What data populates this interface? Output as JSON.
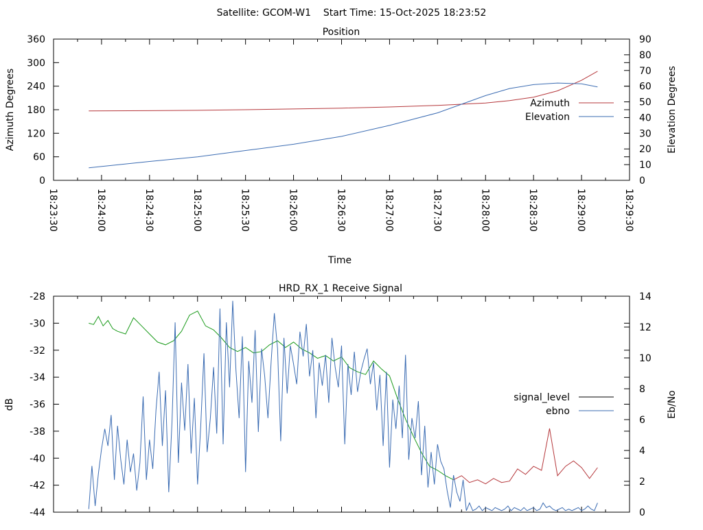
{
  "header": {
    "title": "Satellite: GCOM-W1    Start Time: 15-Oct-2025 18:23:52"
  },
  "chart_data": [
    {
      "type": "line",
      "title": "Position",
      "xlabel": "Time",
      "ylabel": "Azimuth Degrees",
      "y2label": "Elevation Degrees",
      "xlim": [
        0,
        360
      ],
      "ylim": [
        0,
        360
      ],
      "y2lim": [
        0,
        90
      ],
      "x_ticks": [
        0,
        30,
        60,
        90,
        120,
        150,
        180,
        210,
        240,
        270,
        300,
        330,
        360
      ],
      "x_tick_labels": [
        "18:23:30",
        "18:24:00",
        "18:24:30",
        "18:25:00",
        "18:25:30",
        "18:26:00",
        "18:26:30",
        "18:27:00",
        "18:27:30",
        "18:28:00",
        "18:28:30",
        "18:29:00",
        "18:29:30"
      ],
      "y_ticks": [
        "0",
        "60",
        "120",
        "180",
        "240",
        "300",
        "360"
      ],
      "y2_ticks": [
        "0",
        "10",
        "20",
        "30",
        "40",
        "50",
        "60",
        "70",
        "80",
        "90"
      ],
      "legend_position": "right",
      "series": [
        {
          "name": "Azimuth",
          "axis": "y",
          "color": "#b5363a",
          "x": [
            22,
            60,
            90,
            120,
            150,
            180,
            210,
            240,
            270,
            285,
            300,
            315,
            330,
            340
          ],
          "values": [
            177,
            177.5,
            178.5,
            180,
            182,
            184,
            187,
            191,
            197,
            203,
            212,
            228,
            255,
            278
          ]
        },
        {
          "name": "Elevation",
          "axis": "y2",
          "color": "#3a6bb2",
          "x": [
            22,
            60,
            90,
            120,
            150,
            180,
            210,
            240,
            270,
            285,
            300,
            315,
            330,
            340
          ],
          "values": [
            8,
            12,
            15,
            19,
            23,
            28,
            35,
            43,
            54,
            58.5,
            61,
            62,
            61.5,
            59.5
          ]
        }
      ]
    },
    {
      "type": "line",
      "title": "HRD_RX_1 Receive Signal",
      "xlabel": "",
      "ylabel": "dB",
      "y2label": "Eb/No",
      "xlim": [
        0,
        360
      ],
      "ylim": [
        -44,
        -28
      ],
      "y2lim": [
        0,
        14
      ],
      "y_ticks": [
        "-28",
        "-30",
        "-32",
        "-34",
        "-36",
        "-38",
        "-40",
        "-42",
        "-44"
      ],
      "y2_ticks": [
        "0",
        "2",
        "4",
        "6",
        "8",
        "10",
        "12",
        "14"
      ],
      "legend_position": "right",
      "series": [
        {
          "name": "signal_level",
          "axis": "y",
          "color": "#000000",
          "segment_colors": [
            "#1a9a1a",
            "#b5363a"
          ],
          "segment_split_x": 250,
          "x": [
            22,
            25,
            28,
            31,
            34,
            37,
            40,
            45,
            50,
            55,
            60,
            65,
            70,
            75,
            80,
            85,
            90,
            95,
            100,
            105,
            110,
            115,
            120,
            125,
            130,
            135,
            140,
            145,
            150,
            155,
            160,
            165,
            170,
            175,
            180,
            185,
            190,
            195,
            200,
            205,
            210,
            215,
            220,
            225,
            230,
            235,
            240,
            245,
            250,
            255,
            260,
            265,
            270,
            275,
            280,
            285,
            290,
            295,
            300,
            305,
            310,
            315,
            320,
            325,
            330,
            335,
            340
          ],
          "values": [
            -30,
            -30.1,
            -29.5,
            -30.2,
            -29.8,
            -30.4,
            -30.6,
            -30.8,
            -29.6,
            -30.2,
            -30.8,
            -31.4,
            -31.6,
            -31.3,
            -30.6,
            -29.4,
            -29.1,
            -30.2,
            -30.5,
            -31.1,
            -31.8,
            -32.1,
            -31.8,
            -32.2,
            -32.1,
            -31.6,
            -31.3,
            -31.8,
            -31.4,
            -31.9,
            -32.2,
            -32.6,
            -32.4,
            -32.8,
            -32.5,
            -33.3,
            -33.6,
            -33.8,
            -32.8,
            -33.4,
            -33.9,
            -35.6,
            -37.1,
            -38.4,
            -39.6,
            -40.6,
            -40.9,
            -41.3,
            -41.6,
            -41.3,
            -41.8,
            -41.6,
            -41.9,
            -41.5,
            -41.8,
            -41.7,
            -40.8,
            -41.2,
            -40.6,
            -40.9,
            -37.8,
            -41.3,
            -40.6,
            -40.2,
            -40.7,
            -41.5,
            -40.7
          ]
        },
        {
          "name": "ebno",
          "axis": "y2",
          "color": "#3a6bb2",
          "x": [
            22,
            24,
            26,
            28,
            30,
            32,
            34,
            36,
            38,
            40,
            42,
            44,
            46,
            48,
            50,
            52,
            54,
            56,
            58,
            60,
            62,
            64,
            66,
            68,
            70,
            72,
            74,
            76,
            78,
            80,
            82,
            84,
            86,
            88,
            90,
            92,
            94,
            96,
            98,
            100,
            102,
            104,
            106,
            108,
            110,
            112,
            114,
            116,
            118,
            120,
            122,
            124,
            126,
            128,
            130,
            132,
            134,
            136,
            138,
            140,
            142,
            144,
            146,
            148,
            150,
            152,
            154,
            156,
            158,
            160,
            162,
            164,
            166,
            168,
            170,
            172,
            174,
            176,
            178,
            180,
            182,
            184,
            186,
            188,
            190,
            192,
            194,
            196,
            198,
            200,
            202,
            204,
            206,
            208,
            210,
            212,
            214,
            216,
            218,
            220,
            222,
            224,
            226,
            228,
            230,
            232,
            234,
            236,
            238,
            240,
            242,
            244,
            246,
            248,
            250,
            252,
            254,
            256,
            258,
            260,
            262,
            264,
            266,
            268,
            270,
            272,
            274,
            276,
            278,
            280,
            282,
            284,
            286,
            288,
            290,
            292,
            294,
            296,
            298,
            300,
            302,
            304,
            306,
            308,
            310,
            312,
            314,
            316,
            318,
            320,
            322,
            324,
            326,
            328,
            330,
            332,
            334,
            336,
            338,
            340
          ],
          "values": [
            0.2,
            3,
            0.4,
            2.5,
            4.1,
            5.4,
            4.3,
            6.3,
            2.1,
            5.6,
            3.4,
            1.8,
            4.7,
            2.6,
            3.8,
            1.4,
            3.2,
            7.5,
            2.1,
            4.7,
            2.8,
            6.6,
            9.1,
            4.3,
            7.9,
            1.3,
            5.8,
            12.3,
            3.2,
            8.4,
            5.3,
            9.6,
            3.8,
            7.4,
            1.8,
            5.6,
            10.3,
            3.9,
            6.1,
            9.4,
            5.1,
            13.2,
            4.4,
            12.3,
            8.1,
            13.7,
            9.2,
            6.1,
            11.4,
            2.6,
            9.8,
            7.1,
            11.8,
            5.2,
            10.6,
            8.8,
            6.1,
            9.8,
            12.9,
            10.6,
            4.6,
            11.3,
            7.7,
            10.8,
            9.6,
            8.3,
            11.7,
            10.1,
            12.2,
            8.8,
            10.5,
            6.1,
            9.7,
            8.2,
            10.2,
            7.1,
            11.3,
            9.4,
            8.1,
            10.8,
            4.4,
            9.6,
            7.6,
            10.4,
            7.8,
            9.1,
            9.9,
            10.6,
            8.3,
            9.7,
            6.6,
            8.9,
            4.3,
            9.1,
            2.9,
            7.3,
            5.4,
            8.2,
            4.8,
            10.2,
            3.4,
            6.1,
            4.8,
            7.2,
            2.4,
            5.6,
            1.6,
            3.9,
            1.8,
            4.4,
            3.3,
            2.8,
            1.4,
            0.3,
            2.4,
            1.3,
            0.7,
            2.1,
            0.1,
            0.6,
            0.1,
            0.2,
            0.4,
            0.1,
            0.3,
            0.2,
            0.1,
            0.3,
            0.2,
            0.1,
            0.2,
            0.4,
            0.1,
            0.3,
            0.2,
            0.1,
            0.3,
            0.1,
            0.2,
            0.3,
            0.1,
            0.2,
            0.6,
            0.3,
            0.4,
            0.2,
            0.1,
            0.2,
            0.3,
            0.1,
            0.2,
            0.1,
            0.2,
            0.3,
            0.1,
            0.2,
            0.4,
            0.2,
            0.1,
            0.6
          ]
        }
      ]
    }
  ]
}
